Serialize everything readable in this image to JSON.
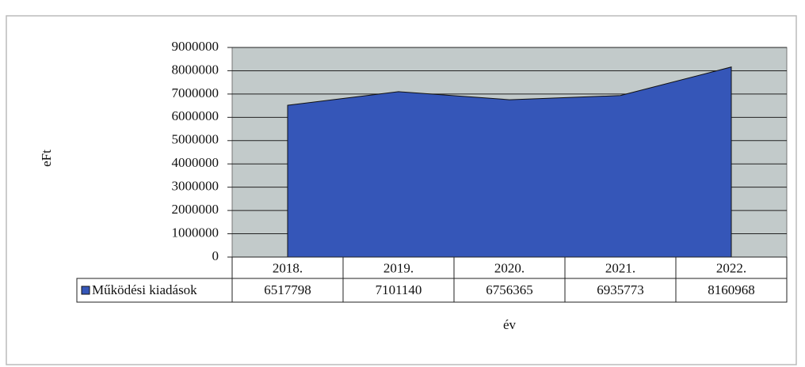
{
  "chart_data": {
    "type": "area",
    "ylabel": "eFt",
    "xlabel": "év",
    "categories": [
      "2018.",
      "2019.",
      "2020.",
      "2021.",
      "2022."
    ],
    "series": [
      {
        "name": "Működési kiadások",
        "color": "#3556b8",
        "values": [
          6517798,
          7101140,
          6756365,
          6935773,
          8160968
        ]
      }
    ],
    "ylim": [
      0,
      9000000
    ],
    "yticks": [
      0,
      1000000,
      2000000,
      3000000,
      4000000,
      5000000,
      6000000,
      7000000,
      8000000,
      9000000
    ],
    "grid": true,
    "plot_background": "#c2caca",
    "data_table": true
  }
}
